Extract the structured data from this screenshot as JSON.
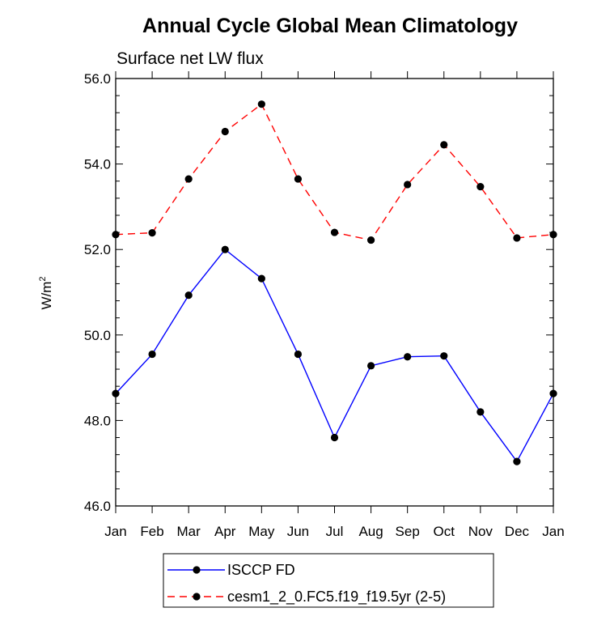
{
  "chart_data": {
    "type": "line",
    "title": "Annual Cycle Global Mean Climatology",
    "subtitle": "Surface net LW flux",
    "xlabel": "",
    "ylabel": "W/m",
    "ylabel_superscript": "2",
    "ylim": [
      46.0,
      56.0
    ],
    "yticks": [
      "46.0",
      "48.0",
      "50.0",
      "52.0",
      "54.0",
      "56.0"
    ],
    "categories": [
      "Jan",
      "Feb",
      "Mar",
      "Apr",
      "May",
      "Jun",
      "Jul",
      "Aug",
      "Sep",
      "Oct",
      "Nov",
      "Dec",
      "Jan"
    ],
    "grid": false,
    "legend_position": "bottom-center",
    "series": [
      {
        "name": "ISCCP FD",
        "color": "#0000ff",
        "dash": "solid",
        "marker": "filled-circle",
        "values": [
          48.63,
          49.55,
          50.93,
          52.0,
          51.32,
          49.55,
          47.6,
          49.28,
          49.49,
          49.51,
          48.2,
          47.04,
          48.63
        ]
      },
      {
        "name": "cesm1_2_0.FC5.f19_f19.5yr (2-5)",
        "color": "#ff0000",
        "dash": "dashed",
        "marker": "filled-circle",
        "values": [
          52.35,
          52.39,
          53.65,
          54.76,
          55.4,
          53.65,
          52.4,
          52.22,
          53.52,
          54.45,
          53.47,
          52.27,
          52.35
        ]
      }
    ]
  }
}
